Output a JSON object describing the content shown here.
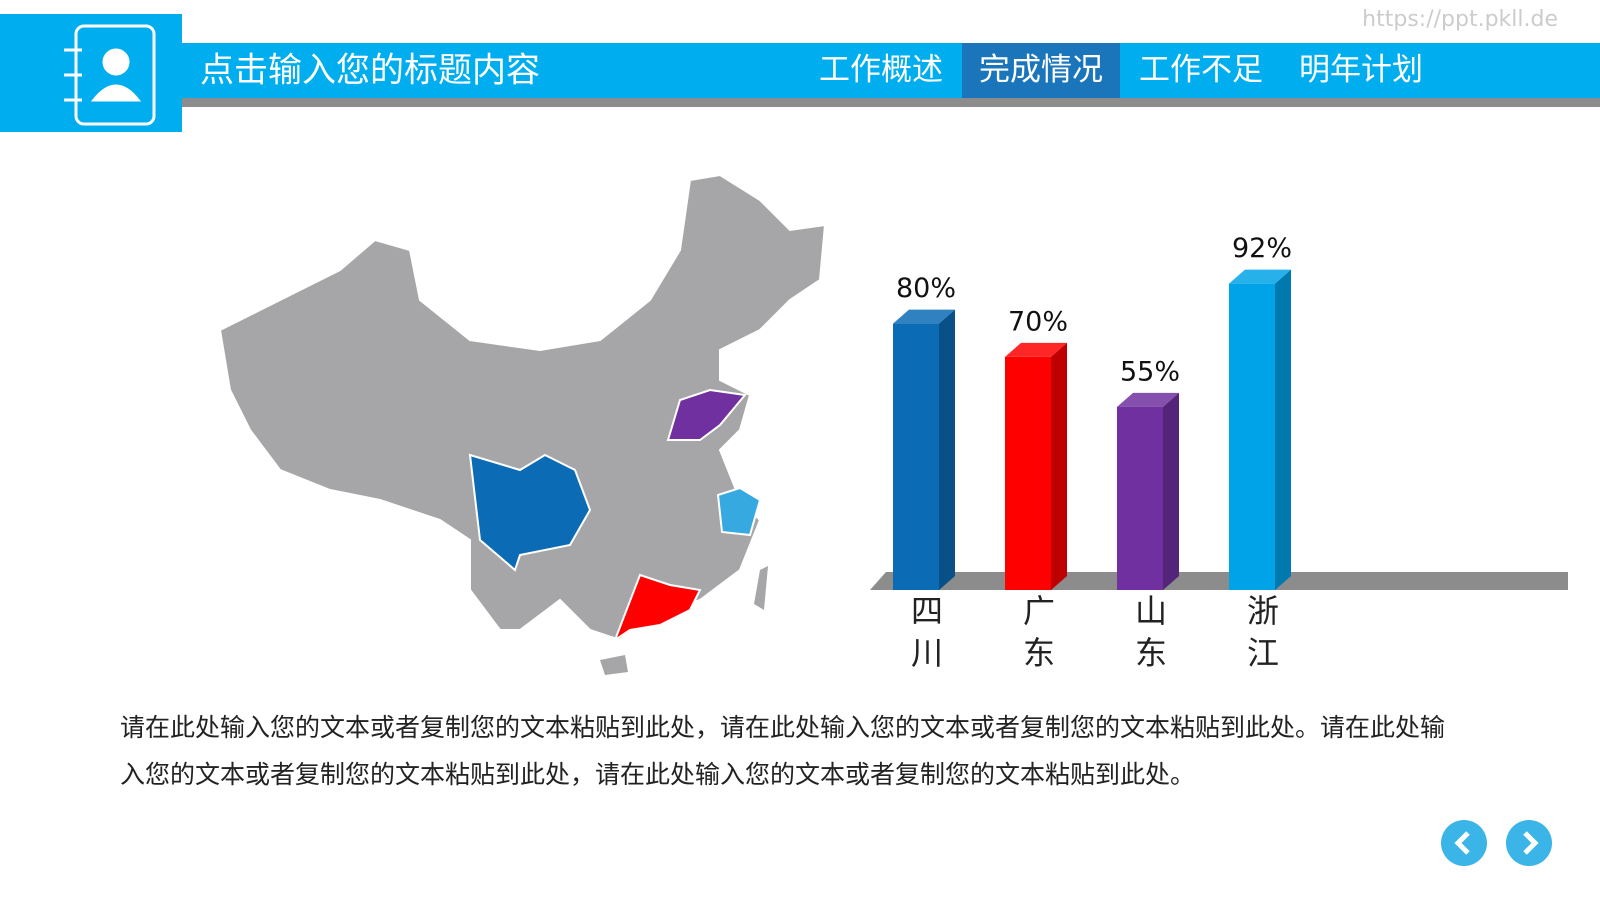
{
  "header": {
    "title": "点击输入您的标题内容",
    "watermark": "https://ppt.pkll.de",
    "nav": [
      "工作概述",
      "完成情况",
      "工作不足",
      "明年计划"
    ],
    "active_nav": 1
  },
  "chart_data": {
    "type": "bar3d",
    "categories": [
      "四川",
      "广东",
      "山东",
      "浙江"
    ],
    "values": [
      80,
      70,
      55,
      92
    ],
    "value_labels": [
      "80%",
      "70%",
      "55%",
      "92%"
    ],
    "colors": [
      "#0b6bb5",
      "#ff0000",
      "#7030a0",
      "#00a3e8"
    ]
  },
  "body": {
    "text": "请在此处输入您的文本或者复制您的文本粘贴到此处，请在此处输入您的文本或者复制您的文本粘贴到此处。请在此处输入您的文本或者复制您的文本粘贴到此处，请在此处输入您的文本或者复制您的文本粘贴到此处。"
  }
}
